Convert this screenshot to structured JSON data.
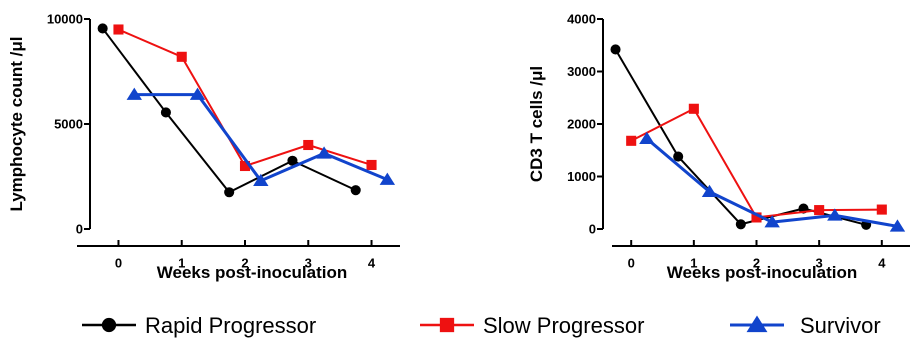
{
  "chart_data": [
    {
      "type": "line",
      "xlabel": "Weeks post-inoculation",
      "ylabel": "Lymphocyte count /μl",
      "ylim": [
        0,
        10000
      ],
      "yticks": [
        0,
        5000,
        10000
      ],
      "xticks": [
        0,
        1,
        2,
        3,
        4
      ],
      "grid": false,
      "series": [
        {
          "name": "Rapid Progressor",
          "x": [
            -0.25,
            0.75,
            1.75,
            2.75,
            3.75
          ],
          "y": [
            9550,
            5550,
            1750,
            3250,
            1850
          ]
        },
        {
          "name": "Slow Progressor",
          "x": [
            0,
            1,
            2,
            3,
            4
          ],
          "y": [
            9500,
            8200,
            3000,
            4000,
            3050
          ]
        },
        {
          "name": "Survivor",
          "x": [
            0.25,
            1.25,
            2.25,
            3.25,
            4.25
          ],
          "y": [
            6400,
            6400,
            2300,
            3600,
            2350
          ]
        }
      ]
    },
    {
      "type": "line",
      "xlabel": "Weeks post-inoculation",
      "ylabel": "CD3 T cells /μl",
      "ylim": [
        0,
        4000
      ],
      "yticks": [
        0,
        1000,
        2000,
        3000,
        4000
      ],
      "xticks": [
        0,
        1,
        2,
        3,
        4
      ],
      "grid": false,
      "series": [
        {
          "name": "Rapid Progressor",
          "x": [
            -0.25,
            0.75,
            1.75,
            2.75,
            3.75
          ],
          "y": [
            3420,
            1380,
            90,
            390,
            80
          ]
        },
        {
          "name": "Slow Progressor",
          "x": [
            0,
            1,
            2,
            3,
            4
          ],
          "y": [
            1680,
            2290,
            220,
            360,
            370
          ]
        },
        {
          "name": "Survivor",
          "x": [
            0.25,
            1.25,
            2.25,
            3.25,
            4.25
          ],
          "y": [
            1720,
            710,
            130,
            260,
            50
          ]
        }
      ]
    }
  ],
  "legend": {
    "placement": "bottom",
    "entries": [
      {
        "label": "Rapid Progressor",
        "color": "#000000",
        "marker": "circle"
      },
      {
        "label": "Slow Progressor",
        "color": "#ee1111",
        "marker": "square"
      },
      {
        "label": "Survivor",
        "color": "#1144cc",
        "marker": "triangle"
      }
    ]
  },
  "styles": {
    "series_colors": [
      "#000000",
      "#ee1111",
      "#1144cc"
    ],
    "series_markers": [
      "circle",
      "square",
      "triangle"
    ]
  }
}
